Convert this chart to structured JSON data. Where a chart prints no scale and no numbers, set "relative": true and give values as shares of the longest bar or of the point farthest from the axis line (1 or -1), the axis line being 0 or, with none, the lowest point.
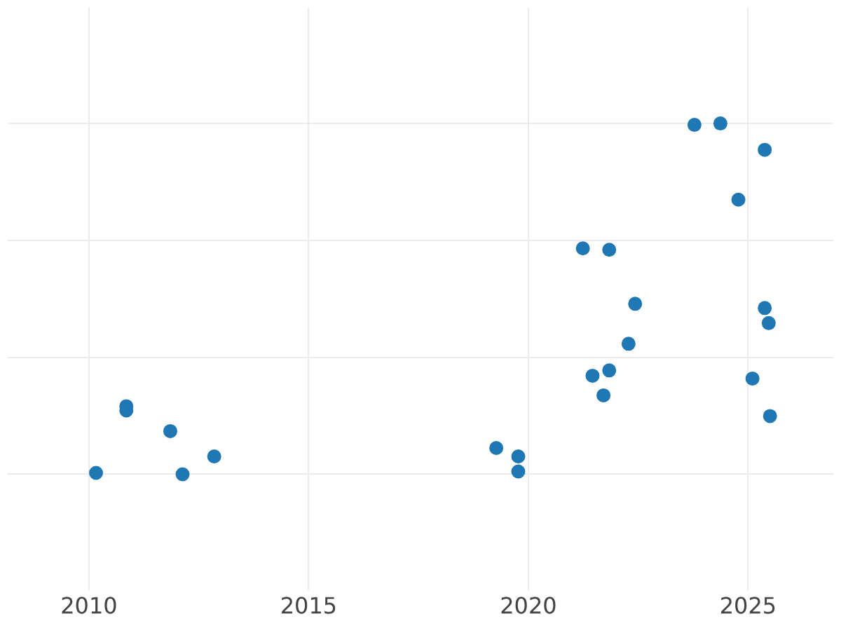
{
  "chart_data": {
    "type": "scatter",
    "relative": true,
    "x": [
      2010.16,
      2010.85,
      2010.85,
      2011.85,
      2012.13,
      2012.85,
      2019.27,
      2019.77,
      2019.77,
      2021.24,
      2021.84,
      2022.43,
      2022.28,
      2021.46,
      2021.84,
      2021.71,
      2023.78,
      2024.37,
      2025.38,
      2024.78,
      2025.38,
      2025.47,
      2025.1,
      2025.5
    ],
    "values": [
      0.004,
      0.194,
      0.182,
      0.123,
      0,
      0.051,
      0.075,
      0.051,
      0.008,
      0.644,
      0.64,
      0.486,
      0.372,
      0.281,
      0.296,
      0.225,
      0.996,
      1,
      0.925,
      0.783,
      0.474,
      0.431,
      0.273,
      0.166
    ],
    "color": "#1f77b4",
    "marker": "circle",
    "xlim": [
      2008.15,
      2026.94
    ],
    "xticks": [
      2010,
      2015,
      2020,
      2025
    ],
    "grid": true,
    "legend": false
  }
}
